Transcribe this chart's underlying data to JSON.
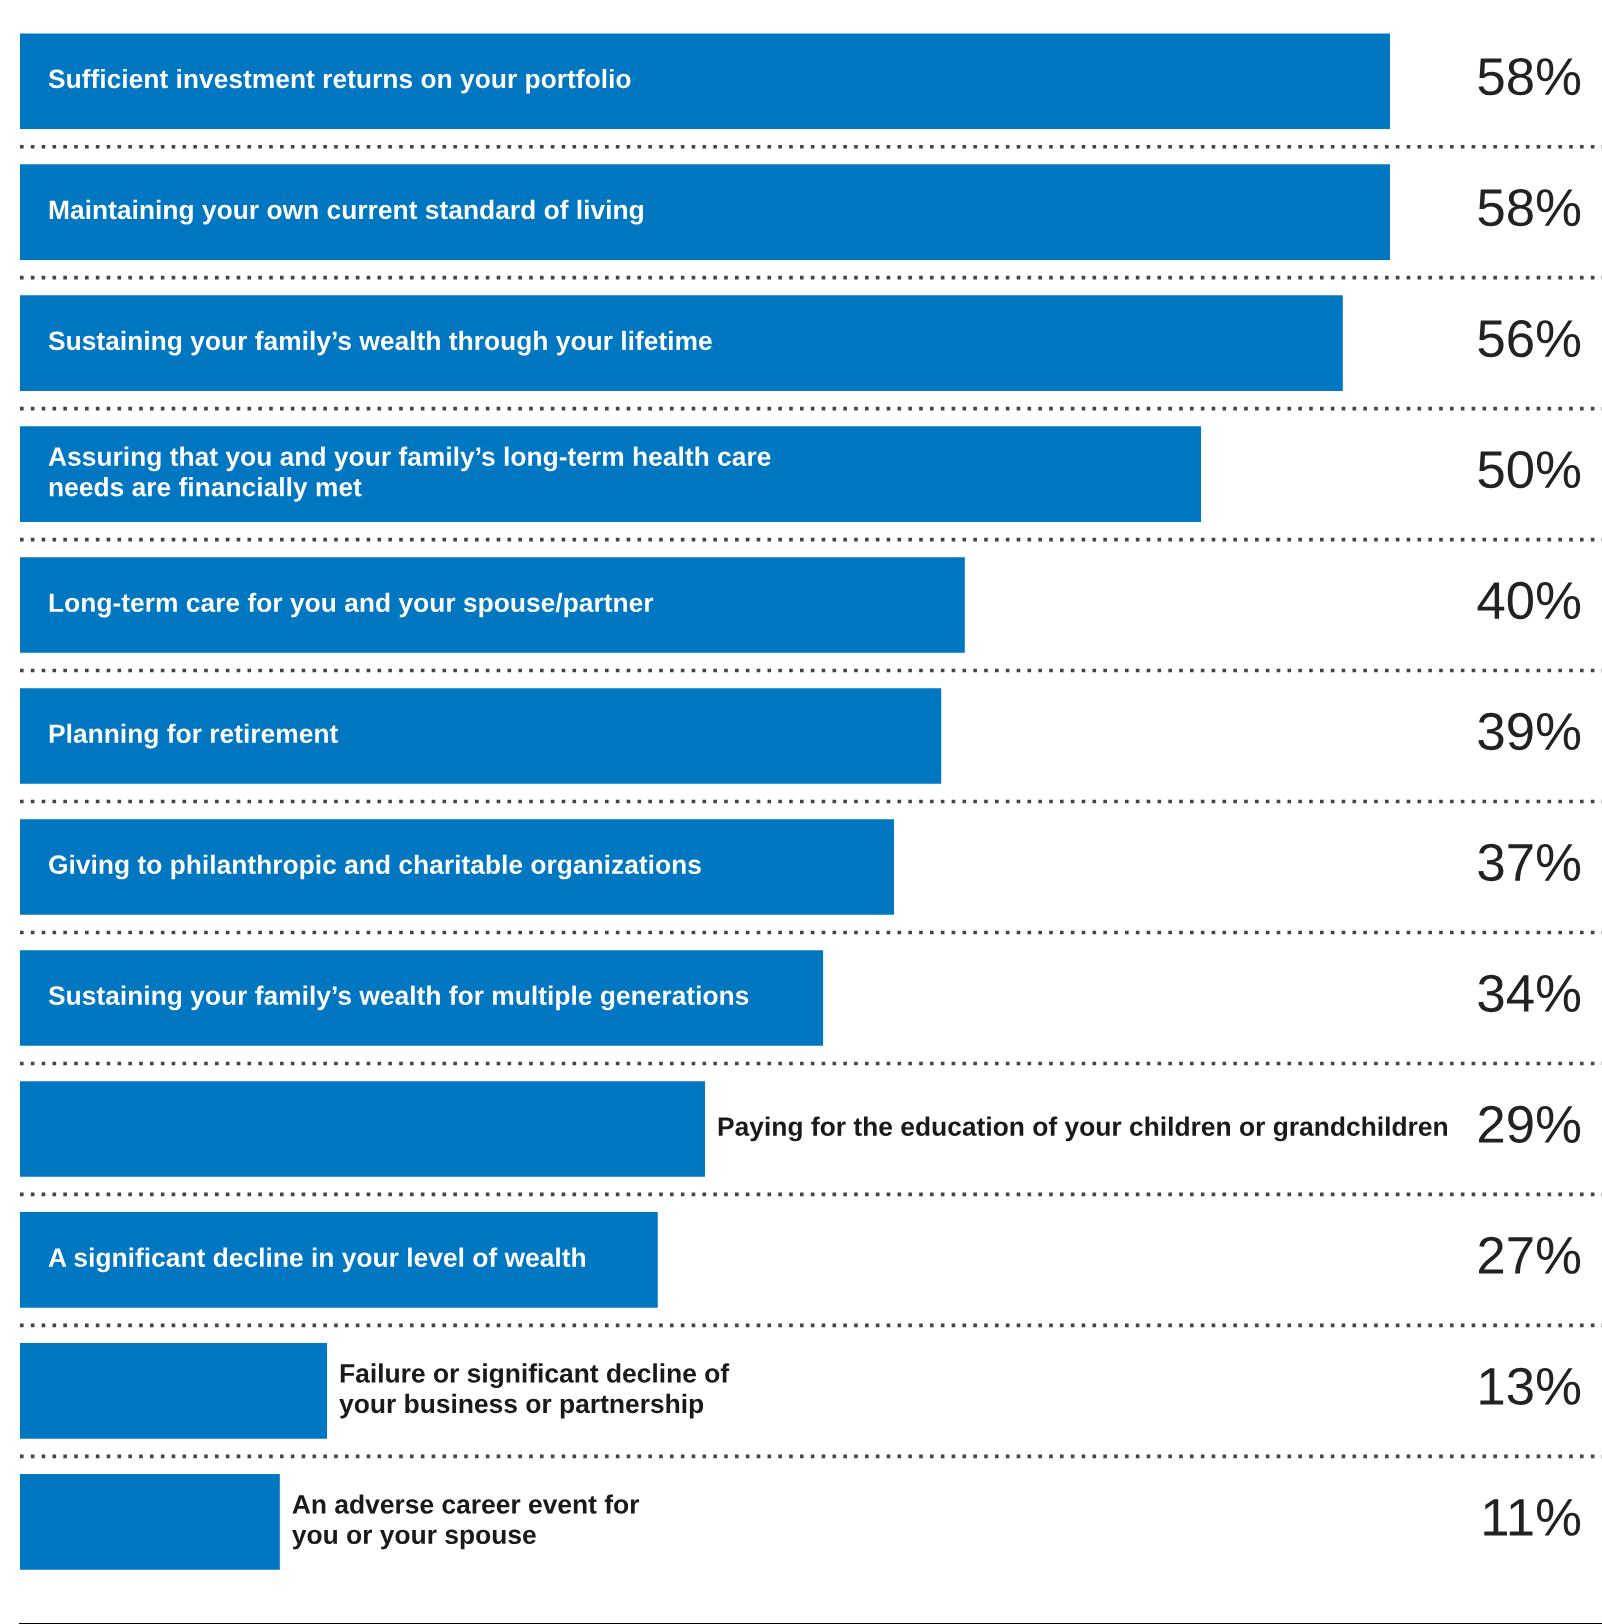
{
  "chart_data": {
    "type": "bar",
    "orientation": "horizontal",
    "value_labels": [
      "58%",
      "58%",
      "56%",
      "50%",
      "40%",
      "39%",
      "37%",
      "34%",
      "29%",
      "27%",
      "13%",
      "11%"
    ],
    "color": "#0077c0",
    "grid": "y",
    "categories": [
      "Sufficient investment returns on your portfolio",
      "Maintaining your own current standard of living",
      "Sustaining your family’s wealth through your lifetime",
      "Assuring that you and your family’s long-term health care\nneeds are financially met",
      "Long-term care for you and your spouse/partner",
      "Planning for retirement",
      "Giving to philanthropic and charitable organizations",
      "Sustaining your family’s wealth for multiple generations",
      "Paying for the education of your children or grandchildren",
      "A significant decline in your level of wealth",
      "Failure or significant decline of\nyour business or partnership",
      "An adverse career event for\nyou or your spouse"
    ],
    "values": [
      58,
      58,
      56,
      50,
      40,
      39,
      37,
      34,
      29,
      27,
      13,
      11
    ]
  }
}
